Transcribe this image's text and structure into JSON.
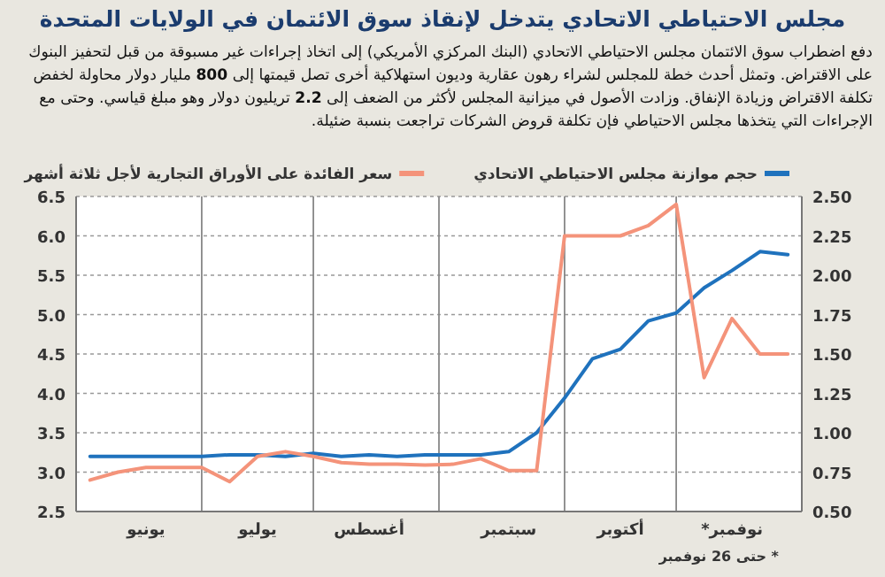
{
  "chart_data": {
    "type": "line",
    "title": "مجلس الاحتياطي الاتحادي يتدخل لإنقاذ سوق الائتمان في الولايات المتحدة",
    "subtitle": "دفع اضطراب سوق الائتمان مجلس الاحتياطي الاتحادي (البنك المركزي الأمريكي) إلى اتخاذ إجراءات غير مسبوقة من قبل لتحفيز البنوك على الاقتراض. وتمثل أحدث خطة للمجلس لشراء رهون عقارية وديون استهلاكية أخرى تصل قيمتها إلى **800** مليار دولار محاولة لخفض تكلفة الاقتراض وزيادة الإنفاق. وزادت الأصول في ميزانية المجلس لأكثر من الضعف إلى **2.2** تريليون دولار وهو مبلغ قياسي. وحتى مع الإجراءات التي يتخذها مجلس الاحتياطي فإن تكلفة قروض الشركات تراجعت بنسبة ضئيلة.",
    "annotations": [
      "* حتى 26 نوفمبر"
    ],
    "categories": [
      null,
      null,
      "يونيو",
      null,
      null,
      null,
      "يوليو",
      null,
      null,
      null,
      "أغسطس",
      null,
      null,
      null,
      null,
      "سبتمبر",
      null,
      null,
      null,
      "أكتوبر",
      null,
      null,
      null,
      "نوفمبر*",
      null,
      null
    ],
    "ylim": [
      2.5,
      6.5
    ],
    "yticks": [
      2.5,
      {
        "value": 3,
        "label": "3.0"
      },
      3.5,
      {
        "value": 4,
        "label": "4.0"
      },
      4.5,
      {
        "value": 5,
        "label": "5.0"
      },
      5.5,
      {
        "value": 6,
        "label": "6.0"
      },
      6.5
    ],
    "y2lim": [
      0.5,
      2.5
    ],
    "y2ticks": [
      {
        "value": 0.5,
        "label": "0.50"
      },
      0.75,
      {
        "value": 1,
        "label": "1.00"
      },
      1.25,
      {
        "value": 1.5,
        "label": "1.50"
      },
      1.75,
      {
        "value": 2,
        "label": "2.00"
      },
      2.25,
      {
        "value": 2.5,
        "label": "2.50"
      }
    ],
    "grid": true,
    "legend": "top",
    "series": [
      {
        "name": "حجم موازنة مجلس الاحتياطي الاتحادي",
        "color": "#1f72bd",
        "axis": "y2",
        "values": [
          0.85,
          0.85,
          0.85,
          0.85,
          0.85,
          0.86,
          0.86,
          0.85,
          0.87,
          0.85,
          0.86,
          0.85,
          0.86,
          0.86,
          0.86,
          0.88,
          1.0,
          1.22,
          1.47,
          1.53,
          1.71,
          1.76,
          1.92,
          2.03,
          2.15,
          2.13
        ]
      },
      {
        "name": "سعر الفائدة على الأوراق التجارية لأجل ثلاثة أشهر",
        "color": "#f4937a",
        "values": [
          2.9,
          3.0,
          3.06,
          3.06,
          3.06,
          2.88,
          3.2,
          3.26,
          3.2,
          3.12,
          3.1,
          3.1,
          3.09,
          3.1,
          3.17,
          3.02,
          3.02,
          6.0,
          6.0,
          6.0,
          6.13,
          6.4,
          4.2,
          4.95,
          4.5,
          4.5
        ]
      }
    ]
  }
}
